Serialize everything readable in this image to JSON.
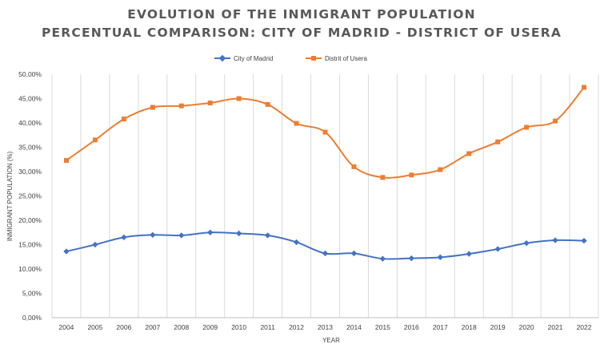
{
  "chart_data": {
    "type": "line",
    "title": [
      "EVOLUTION OF THE INMIGRANT POPULATION",
      "PERCENTUAL COMPARISON: CITY OF MADRID - DISTRICT OF USERA"
    ],
    "xlabel": "YEAR",
    "ylabel": "INMIGRANT POPULATION (%)",
    "ylim": [
      0,
      50
    ],
    "ytick_step": 5,
    "ytick_labels": [
      "0,00%",
      "5,00%",
      "10,00%",
      "15,00%",
      "20,00%",
      "25,00%",
      "30,00%",
      "35,00%",
      "40,00%",
      "45,00%",
      "50,00%"
    ],
    "grid": "vertical",
    "legend_position": "top-center",
    "x": [
      "2004",
      "2005",
      "2006",
      "2007",
      "2008",
      "2009",
      "2010",
      "2011",
      "2012",
      "2013",
      "2014",
      "2015",
      "2016",
      "2017",
      "2018",
      "2019",
      "2020",
      "2021",
      "2022"
    ],
    "series": [
      {
        "name": "City of Madrid",
        "color": "#4472C4",
        "marker": "diamond",
        "values": [
          13.6,
          15.0,
          16.5,
          17.0,
          16.9,
          17.5,
          17.3,
          16.9,
          15.5,
          13.2,
          13.2,
          12.1,
          12.2,
          12.4,
          13.1,
          14.1,
          15.3,
          15.9,
          15.8
        ]
      },
      {
        "name": "Distrit of Usera",
        "color": "#ED7D31",
        "marker": "square",
        "values": [
          32.3,
          36.5,
          40.8,
          43.2,
          43.5,
          44.1,
          45.0,
          43.8,
          39.9,
          38.1,
          31.0,
          28.8,
          29.3,
          30.4,
          33.7,
          36.1,
          39.1,
          40.4,
          47.3
        ]
      }
    ]
  }
}
